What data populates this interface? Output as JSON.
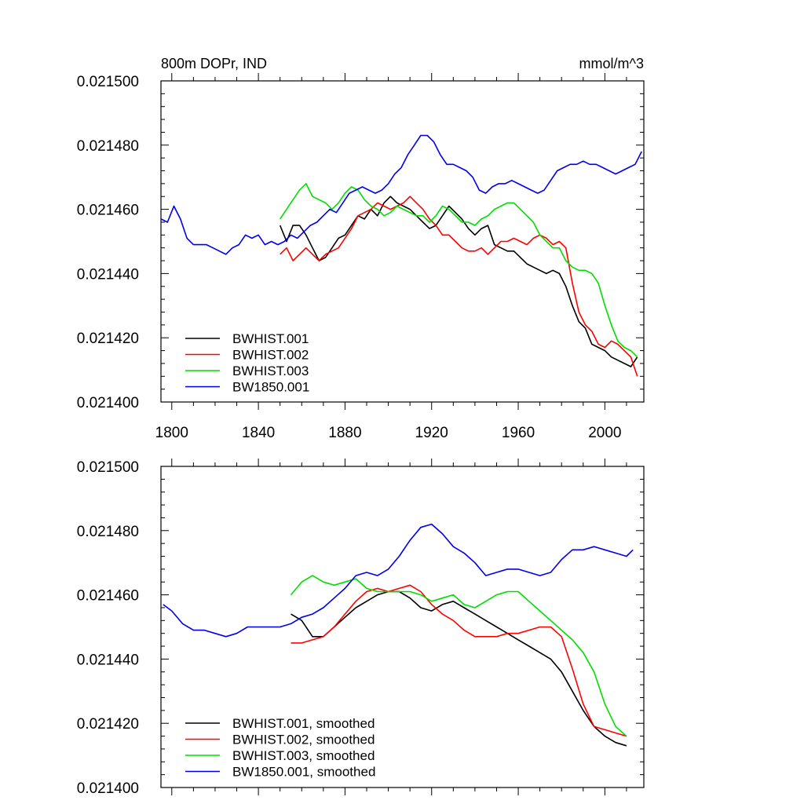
{
  "chart_data": [
    {
      "type": "line",
      "title_left": "800m DOPr, IND",
      "title_right": "mmol/m^3",
      "xlabel": "",
      "ylabel": "",
      "xlim": [
        1795,
        2018
      ],
      "ylim": [
        0.0214,
        0.0215
      ],
      "x_ticks": [
        1800,
        1840,
        1880,
        1920,
        1960,
        2000
      ],
      "y_ticks": [
        "0.021400",
        "0.021420",
        "0.021440",
        "0.021460",
        "0.021480",
        "0.021500"
      ],
      "legend_location": "lower-left",
      "series": [
        {
          "name": "BWHIST.001",
          "color": "#000000",
          "x": [
            1850,
            1853,
            1856,
            1859,
            1862,
            1865,
            1868,
            1871,
            1874,
            1877,
            1880,
            1883,
            1886,
            1889,
            1892,
            1895,
            1898,
            1901,
            1904,
            1907,
            1910,
            1913,
            1916,
            1919,
            1922,
            1925,
            1928,
            1931,
            1934,
            1937,
            1940,
            1943,
            1946,
            1949,
            1952,
            1955,
            1958,
            1961,
            1964,
            1967,
            1970,
            1973,
            1976,
            1979,
            1982,
            1985,
            1988,
            1991,
            1994,
            1997,
            2000,
            2003,
            2006,
            2009,
            2012,
            2015
          ],
          "y": [
            0.021455,
            0.02145,
            0.021455,
            0.021455,
            0.021452,
            0.021448,
            0.021444,
            0.021445,
            0.021448,
            0.021451,
            0.021452,
            0.021455,
            0.021458,
            0.021457,
            0.02146,
            0.021458,
            0.021462,
            0.021464,
            0.021462,
            0.021461,
            0.02146,
            0.021458,
            0.021456,
            0.021454,
            0.021455,
            0.021458,
            0.021461,
            0.021459,
            0.021457,
            0.021454,
            0.021452,
            0.021454,
            0.021455,
            0.021449,
            0.021448,
            0.021447,
            0.021447,
            0.021445,
            0.021443,
            0.021442,
            0.021441,
            0.02144,
            0.021441,
            0.02144,
            0.021436,
            0.02143,
            0.021425,
            0.021423,
            0.021418,
            0.021417,
            0.021416,
            0.021414,
            0.021413,
            0.021412,
            0.021411,
            0.021414
          ]
        },
        {
          "name": "BWHIST.002",
          "color": "#ff0000",
          "x": [
            1850,
            1853,
            1856,
            1859,
            1862,
            1865,
            1868,
            1871,
            1874,
            1877,
            1880,
            1883,
            1886,
            1889,
            1892,
            1895,
            1898,
            1901,
            1904,
            1907,
            1910,
            1913,
            1916,
            1919,
            1922,
            1925,
            1928,
            1931,
            1934,
            1937,
            1940,
            1943,
            1946,
            1949,
            1952,
            1955,
            1958,
            1961,
            1964,
            1967,
            1970,
            1973,
            1976,
            1979,
            1982,
            1985,
            1988,
            1991,
            1994,
            1997,
            2000,
            2003,
            2006,
            2009,
            2012,
            2015
          ],
          "y": [
            0.021446,
            0.021448,
            0.021444,
            0.021446,
            0.021448,
            0.021446,
            0.021444,
            0.021446,
            0.021447,
            0.021448,
            0.021451,
            0.021454,
            0.021458,
            0.021459,
            0.02146,
            0.021462,
            0.021461,
            0.02146,
            0.021461,
            0.021462,
            0.021464,
            0.021462,
            0.02146,
            0.021457,
            0.021455,
            0.021452,
            0.021452,
            0.02145,
            0.021448,
            0.021447,
            0.021447,
            0.021448,
            0.021446,
            0.021448,
            0.02145,
            0.02145,
            0.021451,
            0.02145,
            0.021449,
            0.021451,
            0.021452,
            0.021451,
            0.021449,
            0.02145,
            0.021448,
            0.021437,
            0.021428,
            0.021424,
            0.021422,
            0.021418,
            0.021417,
            0.021419,
            0.021418,
            0.021416,
            0.021414,
            0.021408
          ]
        },
        {
          "name": "BWHIST.003",
          "color": "#00dd00",
          "x": [
            1850,
            1853,
            1856,
            1859,
            1862,
            1865,
            1868,
            1871,
            1874,
            1877,
            1880,
            1883,
            1886,
            1889,
            1892,
            1895,
            1898,
            1901,
            1904,
            1907,
            1910,
            1913,
            1916,
            1919,
            1922,
            1925,
            1928,
            1931,
            1934,
            1937,
            1940,
            1943,
            1946,
            1949,
            1952,
            1955,
            1958,
            1961,
            1964,
            1967,
            1970,
            1973,
            1976,
            1979,
            1982,
            1985,
            1988,
            1991,
            1994,
            1997,
            2000,
            2003,
            2006,
            2009,
            2012,
            2015
          ],
          "y": [
            0.021457,
            0.02146,
            0.021463,
            0.021466,
            0.021468,
            0.021464,
            0.021463,
            0.021462,
            0.02146,
            0.021462,
            0.021465,
            0.021467,
            0.021466,
            0.021463,
            0.021461,
            0.02146,
            0.021458,
            0.021459,
            0.021461,
            0.02146,
            0.021459,
            0.021458,
            0.021458,
            0.021456,
            0.021458,
            0.021461,
            0.02146,
            0.021458,
            0.021456,
            0.021456,
            0.021455,
            0.021457,
            0.021458,
            0.02146,
            0.021461,
            0.021462,
            0.021462,
            0.02146,
            0.021458,
            0.021456,
            0.021452,
            0.02145,
            0.021448,
            0.021448,
            0.021444,
            0.021442,
            0.021441,
            0.021441,
            0.02144,
            0.021437,
            0.02143,
            0.021424,
            0.021419,
            0.021417,
            0.021416,
            0.021414
          ]
        },
        {
          "name": "BW1850.001",
          "color": "#0000ee",
          "x": [
            1795,
            1798,
            1801,
            1804,
            1807,
            1810,
            1813,
            1816,
            1819,
            1822,
            1825,
            1828,
            1831,
            1834,
            1837,
            1840,
            1843,
            1846,
            1849,
            1852,
            1855,
            1858,
            1861,
            1864,
            1867,
            1870,
            1873,
            1876,
            1879,
            1882,
            1885,
            1888,
            1891,
            1894,
            1897,
            1900,
            1903,
            1906,
            1909,
            1912,
            1915,
            1918,
            1921,
            1924,
            1927,
            1930,
            1933,
            1936,
            1939,
            1942,
            1945,
            1948,
            1951,
            1954,
            1957,
            1960,
            1963,
            1966,
            1969,
            1972,
            1975,
            1978,
            1981,
            1984,
            1987,
            1990,
            1993,
            1996,
            1999,
            2002,
            2005,
            2008,
            2011,
            2014,
            2017
          ],
          "y": [
            0.021457,
            0.021456,
            0.021461,
            0.021457,
            0.021451,
            0.021449,
            0.021449,
            0.021449,
            0.021448,
            0.021447,
            0.021446,
            0.021448,
            0.021449,
            0.021452,
            0.021451,
            0.021452,
            0.021449,
            0.02145,
            0.021449,
            0.02145,
            0.021452,
            0.021451,
            0.021453,
            0.021455,
            0.021456,
            0.021458,
            0.02146,
            0.021459,
            0.021462,
            0.021465,
            0.021466,
            0.021467,
            0.021466,
            0.021465,
            0.021466,
            0.021468,
            0.021471,
            0.021473,
            0.021477,
            0.02148,
            0.021483,
            0.021483,
            0.021481,
            0.021477,
            0.021474,
            0.021474,
            0.021473,
            0.021472,
            0.02147,
            0.021466,
            0.021465,
            0.021467,
            0.021468,
            0.021468,
            0.021469,
            0.021468,
            0.021467,
            0.021466,
            0.021465,
            0.021466,
            0.021469,
            0.021472,
            0.021473,
            0.021474,
            0.021474,
            0.021475,
            0.021474,
            0.021474,
            0.021473,
            0.021472,
            0.021471,
            0.021472,
            0.021473,
            0.021474,
            0.021478
          ]
        }
      ]
    },
    {
      "type": "line",
      "title_left": "",
      "title_right": "",
      "xlabel": "",
      "ylabel": "",
      "xlim": [
        1795,
        2018
      ],
      "ylim": [
        0.0214,
        0.0215
      ],
      "x_ticks": [
        1800,
        1840,
        1880,
        1920,
        1960,
        2000
      ],
      "y_ticks": [
        "0.021400",
        "0.021420",
        "0.021440",
        "0.021460",
        "0.021480",
        "0.021500"
      ],
      "legend_location": "lower-left",
      "series": [
        {
          "name": "BWHIST.001, smoothed",
          "color": "#000000",
          "x": [
            1855,
            1860,
            1865,
            1870,
            1875,
            1880,
            1885,
            1890,
            1895,
            1900,
            1905,
            1910,
            1915,
            1920,
            1925,
            1930,
            1935,
            1940,
            1945,
            1950,
            1955,
            1960,
            1965,
            1970,
            1975,
            1980,
            1985,
            1990,
            1995,
            2000,
            2005,
            2010
          ],
          "y": [
            0.021454,
            0.021452,
            0.021447,
            0.021447,
            0.02145,
            0.021453,
            0.021456,
            0.021458,
            0.02146,
            0.021461,
            0.021461,
            0.021459,
            0.021456,
            0.021455,
            0.021457,
            0.021458,
            0.021456,
            0.021454,
            0.021452,
            0.02145,
            0.021448,
            0.021446,
            0.021444,
            0.021442,
            0.02144,
            0.021436,
            0.02143,
            0.021424,
            0.021419,
            0.021416,
            0.021414,
            0.021413
          ]
        },
        {
          "name": "BWHIST.002, smoothed",
          "color": "#ff0000",
          "x": [
            1855,
            1860,
            1865,
            1870,
            1875,
            1880,
            1885,
            1890,
            1895,
            1900,
            1905,
            1910,
            1915,
            1920,
            1925,
            1930,
            1935,
            1940,
            1945,
            1950,
            1955,
            1960,
            1965,
            1970,
            1975,
            1980,
            1985,
            1990,
            1995,
            2000,
            2005,
            2010
          ],
          "y": [
            0.021445,
            0.021445,
            0.021446,
            0.021447,
            0.02145,
            0.021454,
            0.021458,
            0.021461,
            0.021462,
            0.021461,
            0.021462,
            0.021463,
            0.021461,
            0.021457,
            0.021454,
            0.021452,
            0.021449,
            0.021447,
            0.021447,
            0.021447,
            0.021448,
            0.021448,
            0.021449,
            0.02145,
            0.02145,
            0.021447,
            0.021437,
            0.021426,
            0.021419,
            0.021418,
            0.021417,
            0.021416
          ]
        },
        {
          "name": "BWHIST.003, smoothed",
          "color": "#00dd00",
          "x": [
            1855,
            1860,
            1865,
            1870,
            1875,
            1880,
            1885,
            1890,
            1895,
            1900,
            1905,
            1910,
            1915,
            1920,
            1925,
            1930,
            1935,
            1940,
            1945,
            1950,
            1955,
            1960,
            1965,
            1970,
            1975,
            1980,
            1985,
            1990,
            1995,
            2000,
            2005,
            2010
          ],
          "y": [
            0.02146,
            0.021464,
            0.021466,
            0.021464,
            0.021463,
            0.021464,
            0.021465,
            0.021462,
            0.021461,
            0.021461,
            0.021461,
            0.021461,
            0.02146,
            0.021458,
            0.021459,
            0.02146,
            0.021457,
            0.021456,
            0.021458,
            0.02146,
            0.021461,
            0.021461,
            0.021458,
            0.021455,
            0.021452,
            0.021449,
            0.021446,
            0.021442,
            0.021436,
            0.021426,
            0.021419,
            0.021416
          ]
        },
        {
          "name": "BW1850.001, smoothed",
          "color": "#0000ee",
          "x": [
            1796,
            1800,
            1805,
            1810,
            1815,
            1820,
            1825,
            1830,
            1835,
            1840,
            1845,
            1850,
            1855,
            1860,
            1865,
            1870,
            1875,
            1880,
            1885,
            1890,
            1895,
            1900,
            1905,
            1910,
            1915,
            1920,
            1925,
            1930,
            1935,
            1940,
            1945,
            1950,
            1955,
            1960,
            1965,
            1970,
            1975,
            1980,
            1985,
            1990,
            1995,
            2000,
            2005,
            2010,
            2013
          ],
          "y": [
            0.021457,
            0.021455,
            0.021451,
            0.021449,
            0.021449,
            0.021448,
            0.021447,
            0.021448,
            0.02145,
            0.02145,
            0.02145,
            0.02145,
            0.021451,
            0.021453,
            0.021454,
            0.021456,
            0.021459,
            0.021462,
            0.021466,
            0.021467,
            0.021466,
            0.021468,
            0.021472,
            0.021477,
            0.021481,
            0.021482,
            0.021479,
            0.021475,
            0.021473,
            0.02147,
            0.021466,
            0.021467,
            0.021468,
            0.021468,
            0.021467,
            0.021466,
            0.021467,
            0.021471,
            0.021474,
            0.021474,
            0.021475,
            0.021474,
            0.021473,
            0.021472,
            0.021474
          ]
        }
      ]
    }
  ]
}
